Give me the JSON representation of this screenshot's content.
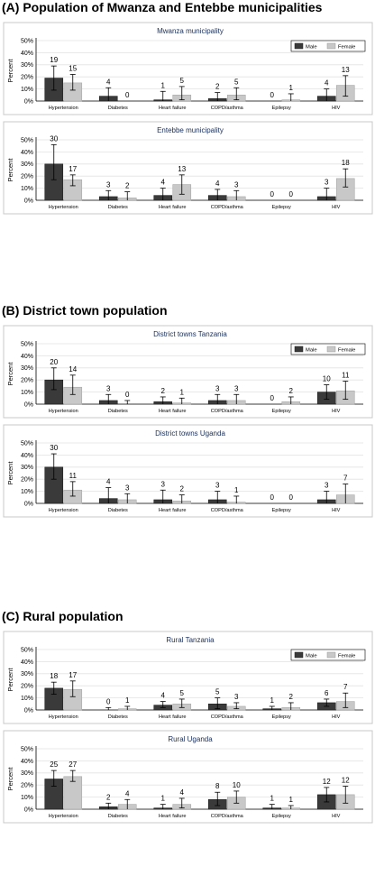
{
  "colors": {
    "male": "#3a3a3a",
    "female": "#c8c8c8",
    "panel_title": "#1a2f5a",
    "grid": "#e2e2e2",
    "border": "#c8c8c8"
  },
  "sections": [
    {
      "title": "(A) Population of Mwanza and Entebbe municipalities"
    },
    {
      "title": "(B) District town population"
    },
    {
      "title": "(C) Rural population"
    }
  ],
  "chart_data": [
    {
      "type": "bar",
      "section": 0,
      "title": "Mwanza municipality",
      "ylabel": "Percent",
      "legend": [
        "Male",
        "Female"
      ],
      "legend_position": "top-right",
      "categories": [
        "Hypertension",
        "Diabetes",
        "Heart failure",
        "COPD/asthma",
        "Epilepsy",
        "HIV"
      ],
      "yticks": [
        "0%",
        "10%",
        "20%",
        "30%",
        "40%",
        "50%"
      ],
      "ylim": [
        0,
        50
      ],
      "grid": true,
      "series": [
        {
          "name": "Male",
          "values": [
            19,
            4,
            1,
            2,
            0,
            4
          ],
          "ci_low": [
            9,
            0,
            0,
            0,
            0,
            0
          ],
          "ci_high": [
            29,
            11,
            8,
            7,
            0,
            10
          ],
          "labels": [
            "19",
            "4",
            "1",
            "2",
            "0",
            "4"
          ]
        },
        {
          "name": "Female",
          "values": [
            15,
            0,
            5,
            5,
            1,
            13
          ],
          "ci_low": [
            9,
            0,
            1,
            1,
            0,
            4
          ],
          "ci_high": [
            22,
            0,
            12,
            11,
            6,
            21
          ],
          "labels": [
            "15",
            "0",
            "5",
            "5",
            "1",
            "13"
          ]
        }
      ]
    },
    {
      "type": "bar",
      "section": 0,
      "title": "Entebbe municipality",
      "ylabel": "Percent",
      "legend": [],
      "legend_position": "none",
      "categories": [
        "Hypertension",
        "Diabetes",
        "Heart failure",
        "COPD/asthma",
        "Epilepsy",
        "HIV"
      ],
      "yticks": [
        "0%",
        "10%",
        "20%",
        "30%",
        "40%",
        "50%"
      ],
      "ylim": [
        0,
        50
      ],
      "grid": true,
      "series": [
        {
          "name": "Male",
          "values": [
            30,
            3,
            4,
            4,
            0,
            3
          ],
          "ci_low": [
            17,
            0,
            0,
            0,
            0,
            0
          ],
          "ci_high": [
            46,
            8,
            10,
            9,
            0,
            10
          ],
          "labels": [
            "30",
            "3",
            "4",
            "4",
            "0",
            "3"
          ]
        },
        {
          "name": "Female",
          "values": [
            17,
            2,
            13,
            3,
            0,
            18
          ],
          "ci_low": [
            12,
            0,
            5,
            0,
            0,
            11
          ],
          "ci_high": [
            21,
            7,
            21,
            8,
            0,
            26
          ],
          "labels": [
            "17",
            "2",
            "13",
            "3",
            "0",
            "18"
          ]
        }
      ]
    },
    {
      "type": "bar",
      "section": 1,
      "title": "District towns Tanzania",
      "ylabel": "Percent",
      "legend": [
        "Male",
        "Female"
      ],
      "legend_position": "top-right",
      "categories": [
        "Hypertension",
        "Diabetes",
        "Heart failure",
        "COPD/asthma",
        "Epilepsy",
        "HIV"
      ],
      "yticks": [
        "0%",
        "10%",
        "20%",
        "30%",
        "40%",
        "50%"
      ],
      "ylim": [
        0,
        50
      ],
      "grid": true,
      "series": [
        {
          "name": "Male",
          "values": [
            20,
            3,
            2,
            3,
            0,
            10
          ],
          "ci_low": [
            12,
            0,
            0,
            0,
            0,
            4
          ],
          "ci_high": [
            30,
            8,
            6,
            8,
            0,
            16
          ],
          "labels": [
            "20",
            "3",
            "2",
            "3",
            "0",
            "10"
          ]
        },
        {
          "name": "Female",
          "values": [
            14,
            0,
            1,
            3,
            2,
            11
          ],
          "ci_low": [
            8,
            0,
            0,
            0,
            0,
            4
          ],
          "ci_high": [
            24,
            3,
            5,
            8,
            6,
            19
          ],
          "labels": [
            "14",
            "0",
            "1",
            "3",
            "2",
            "11"
          ]
        }
      ]
    },
    {
      "type": "bar",
      "section": 1,
      "title": "District towns Uganda",
      "ylabel": "Percent",
      "legend": [],
      "legend_position": "none",
      "categories": [
        "Hypertension",
        "Diabetes",
        "Heart failure",
        "COPD/asthma",
        "Epilepsy",
        "HIV"
      ],
      "yticks": [
        "0%",
        "10%",
        "20%",
        "30%",
        "40%",
        "50%"
      ],
      "ylim": [
        0,
        50
      ],
      "grid": true,
      "series": [
        {
          "name": "Male",
          "values": [
            30,
            4,
            3,
            3,
            0,
            3
          ],
          "ci_low": [
            20,
            0,
            0,
            0,
            0,
            0
          ],
          "ci_high": [
            41,
            13,
            11,
            10,
            0,
            10
          ],
          "labels": [
            "30",
            "4",
            "3",
            "3",
            "0",
            "3"
          ]
        },
        {
          "name": "Female",
          "values": [
            11,
            3,
            2,
            1,
            0,
            7
          ],
          "ci_low": [
            6,
            0,
            0,
            0,
            0,
            0
          ],
          "ci_high": [
            18,
            8,
            7,
            6,
            0,
            16
          ],
          "labels": [
            "11",
            "3",
            "2",
            "1",
            "0",
            "7"
          ]
        }
      ]
    },
    {
      "type": "bar",
      "section": 2,
      "title": "Rural Tanzania",
      "ylabel": "Percent",
      "legend": [
        "Male",
        "Female"
      ],
      "legend_position": "top-right",
      "categories": [
        "Hypertension",
        "Diabetes",
        "Heart failure",
        "COPD/asthma",
        "Epilepsy",
        "HIV"
      ],
      "yticks": [
        "0%",
        "10%",
        "20%",
        "30%",
        "40%",
        "50%"
      ],
      "ylim": [
        0,
        50
      ],
      "grid": true,
      "series": [
        {
          "name": "Male",
          "values": [
            18,
            0,
            4,
            5,
            1,
            6
          ],
          "ci_low": [
            13,
            0,
            2,
            1,
            0,
            3
          ],
          "ci_high": [
            23,
            2,
            7,
            10,
            3,
            9
          ],
          "labels": [
            "18",
            "0",
            "4",
            "5",
            "1",
            "6"
          ]
        },
        {
          "name": "Female",
          "values": [
            17,
            1,
            5,
            3,
            2,
            7
          ],
          "ci_low": [
            11,
            0,
            2,
            1,
            0,
            2
          ],
          "ci_high": [
            24,
            3,
            9,
            6,
            6,
            14
          ],
          "labels": [
            "17",
            "1",
            "5",
            "3",
            "2",
            "7"
          ]
        }
      ]
    },
    {
      "type": "bar",
      "section": 2,
      "title": "Rural Uganda",
      "ylabel": "Percent",
      "legend": [],
      "legend_position": "none",
      "categories": [
        "Hypertension",
        "Diabetes",
        "Heart failure",
        "COPD/asthma",
        "Epilepsy",
        "HIV"
      ],
      "yticks": [
        "0%",
        "10%",
        "20%",
        "30%",
        "40%",
        "50%"
      ],
      "ylim": [
        0,
        50
      ],
      "grid": true,
      "series": [
        {
          "name": "Male",
          "values": [
            25,
            2,
            1,
            8,
            1,
            12
          ],
          "ci_low": [
            19,
            0,
            0,
            3,
            0,
            6
          ],
          "ci_high": [
            32,
            5,
            4,
            14,
            4,
            18
          ],
          "labels": [
            "25",
            "2",
            "1",
            "8",
            "1",
            "12"
          ]
        },
        {
          "name": "Female",
          "values": [
            27,
            4,
            4,
            10,
            1,
            12
          ],
          "ci_low": [
            23,
            0,
            1,
            5,
            0,
            5
          ],
          "ci_high": [
            32,
            8,
            9,
            15,
            3,
            19
          ],
          "labels": [
            "27",
            "4",
            "4",
            "10",
            "1",
            "12"
          ]
        }
      ]
    }
  ]
}
